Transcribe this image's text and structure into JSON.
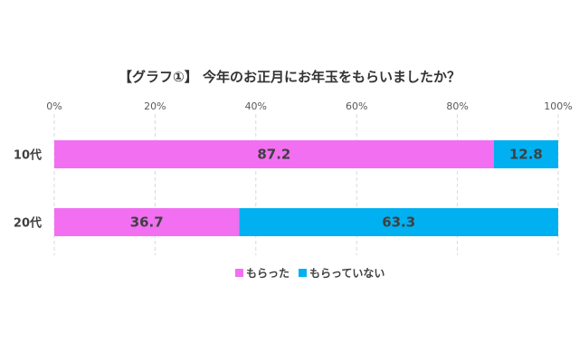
{
  "chart_data": {
    "type": "bar",
    "orientation": "horizontal",
    "stacked": true,
    "title": "【グラフ①】 今年のお正月にお年玉をもらいましたか？",
    "categories": [
      "10代",
      "20代"
    ],
    "series": [
      {
        "name": "もらった",
        "values": [
          87.2,
          36.7
        ],
        "color": "#f26ff2"
      },
      {
        "name": "もらっていない",
        "values": [
          12.8,
          63.3
        ],
        "color": "#00b0f0"
      }
    ],
    "xlim": [
      0,
      100
    ],
    "x_ticks": [
      "0%",
      "20%",
      "40%",
      "60%",
      "80%",
      "100%"
    ],
    "x_tick_values": [
      0,
      20,
      40,
      60,
      80,
      100
    ],
    "x_axis_position": "top",
    "grid": true,
    "legend_position": "bottom",
    "data_labels": true
  }
}
